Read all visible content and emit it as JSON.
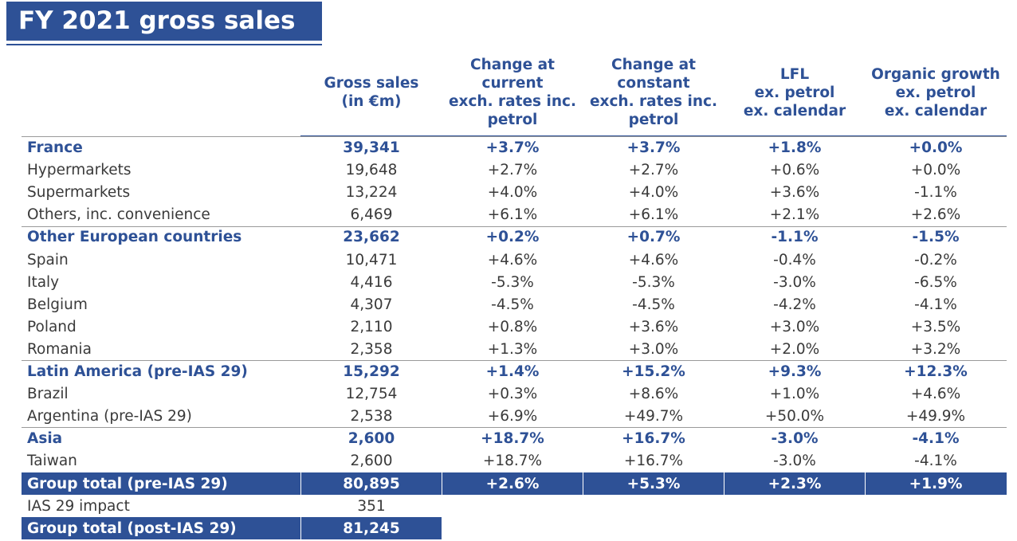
{
  "title": "FY 2021 gross sales",
  "headers": [
    "Gross sales\n(in €m)",
    "Change at\ncurrent\nexch. rates inc.\npetrol",
    "Change at\nconstant\nexch. rates inc.\npetrol",
    "LFL\nex. petrol\nex. calendar",
    "Organic growth\nex. petrol\nex. calendar"
  ],
  "rows": [
    {
      "label": "France",
      "values": [
        "39,341",
        "+3.7%",
        "+3.7%",
        "+1.8%",
        "+0.0%"
      ],
      "style": "bold"
    },
    {
      "label": "Hypermarkets",
      "values": [
        "19,648",
        "+2.7%",
        "+2.7%",
        "+0.6%",
        "+0.0%"
      ],
      "style": "normal"
    },
    {
      "label": "Supermarkets",
      "values": [
        "13,224",
        "+4.0%",
        "+4.0%",
        "+3.6%",
        "-1.1%"
      ],
      "style": "normal"
    },
    {
      "label": "Others, inc. convenience",
      "values": [
        "6,469",
        "+6.1%",
        "+6.1%",
        "+2.1%",
        "+2.6%"
      ],
      "style": "normal"
    },
    {
      "label": "Other European countries",
      "values": [
        "23,662",
        "+0.2%",
        "+0.7%",
        "-1.1%",
        "-1.5%"
      ],
      "style": "bold"
    },
    {
      "label": "Spain",
      "values": [
        "10,471",
        "+4.6%",
        "+4.6%",
        "-0.4%",
        "-0.2%"
      ],
      "style": "normal"
    },
    {
      "label": "Italy",
      "values": [
        "4,416",
        "-5.3%",
        "-5.3%",
        "-3.0%",
        "-6.5%"
      ],
      "style": "normal"
    },
    {
      "label": "Belgium",
      "values": [
        "4,307",
        "-4.5%",
        "-4.5%",
        "-4.2%",
        "-4.1%"
      ],
      "style": "normal"
    },
    {
      "label": "Poland",
      "values": [
        "2,110",
        "+0.8%",
        "+3.6%",
        "+3.0%",
        "+3.5%"
      ],
      "style": "normal"
    },
    {
      "label": "Romania",
      "values": [
        "2,358",
        "+1.3%",
        "+3.0%",
        "+2.0%",
        "+3.2%"
      ],
      "style": "normal"
    },
    {
      "label": "Latin America (pre-IAS 29)",
      "values": [
        "15,292",
        "+1.4%",
        "+15.2%",
        "+9.3%",
        "+12.3%"
      ],
      "style": "bold"
    },
    {
      "label": "Brazil",
      "values": [
        "12,754",
        "+0.3%",
        "+8.6%",
        "+1.0%",
        "+4.6%"
      ],
      "style": "normal"
    },
    {
      "label": "Argentina (pre-IAS 29)",
      "values": [
        "2,538",
        "+6.9%",
        "+49.7%",
        "+50.0%",
        "+49.9%"
      ],
      "style": "normal"
    },
    {
      "label": "Asia",
      "values": [
        "2,600",
        "+18.7%",
        "+16.7%",
        "-3.0%",
        "-4.1%"
      ],
      "style": "bold"
    },
    {
      "label": "Taiwan",
      "values": [
        "2,600",
        "+18.7%",
        "+16.7%",
        "-3.0%",
        "-4.1%"
      ],
      "style": "normal"
    },
    {
      "label": "Group total (pre-IAS 29)",
      "values": [
        "80,895",
        "+2.6%",
        "+5.3%",
        "+2.3%",
        "+1.9%"
      ],
      "style": "total"
    },
    {
      "label": "IAS 29 impact",
      "values": [
        "351",
        "",
        "",
        "",
        ""
      ],
      "style": "normal"
    },
    {
      "label": "Group total (post-IAS 29)",
      "values": [
        "81,245",
        "",
        "",
        "",
        ""
      ],
      "style": "total-short"
    }
  ],
  "colors": {
    "accent": "#2e5196",
    "text": "#3a3a3a",
    "separator": "#9a9a9a"
  }
}
